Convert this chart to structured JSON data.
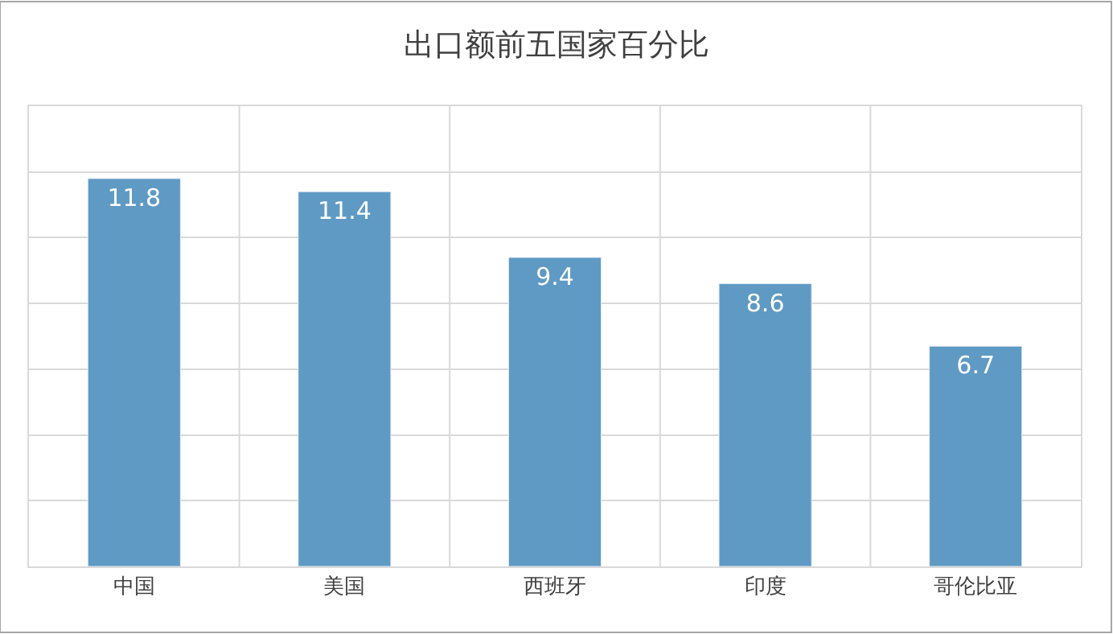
{
  "chart_data": {
    "type": "bar",
    "title": "出口额前五国家百分比",
    "categories": [
      "中国",
      "美国",
      "西班牙",
      "印度",
      "哥伦比亚"
    ],
    "values": [
      11.8,
      11.4,
      9.4,
      8.6,
      6.7
    ],
    "color": "#5f9ac4",
    "data_labels": true,
    "tick_labels": "x",
    "grid": true,
    "ylim": [
      0,
      14
    ],
    "yticks": [
      {
        "value": 0,
        "label": null
      },
      {
        "value": 2,
        "label": null
      },
      {
        "value": 4,
        "label": null
      },
      {
        "value": 6,
        "label": null
      },
      {
        "value": 8,
        "label": null
      },
      {
        "value": 10,
        "label": null
      },
      {
        "value": 12,
        "label": null
      },
      {
        "value": 14,
        "label": null
      }
    ]
  }
}
